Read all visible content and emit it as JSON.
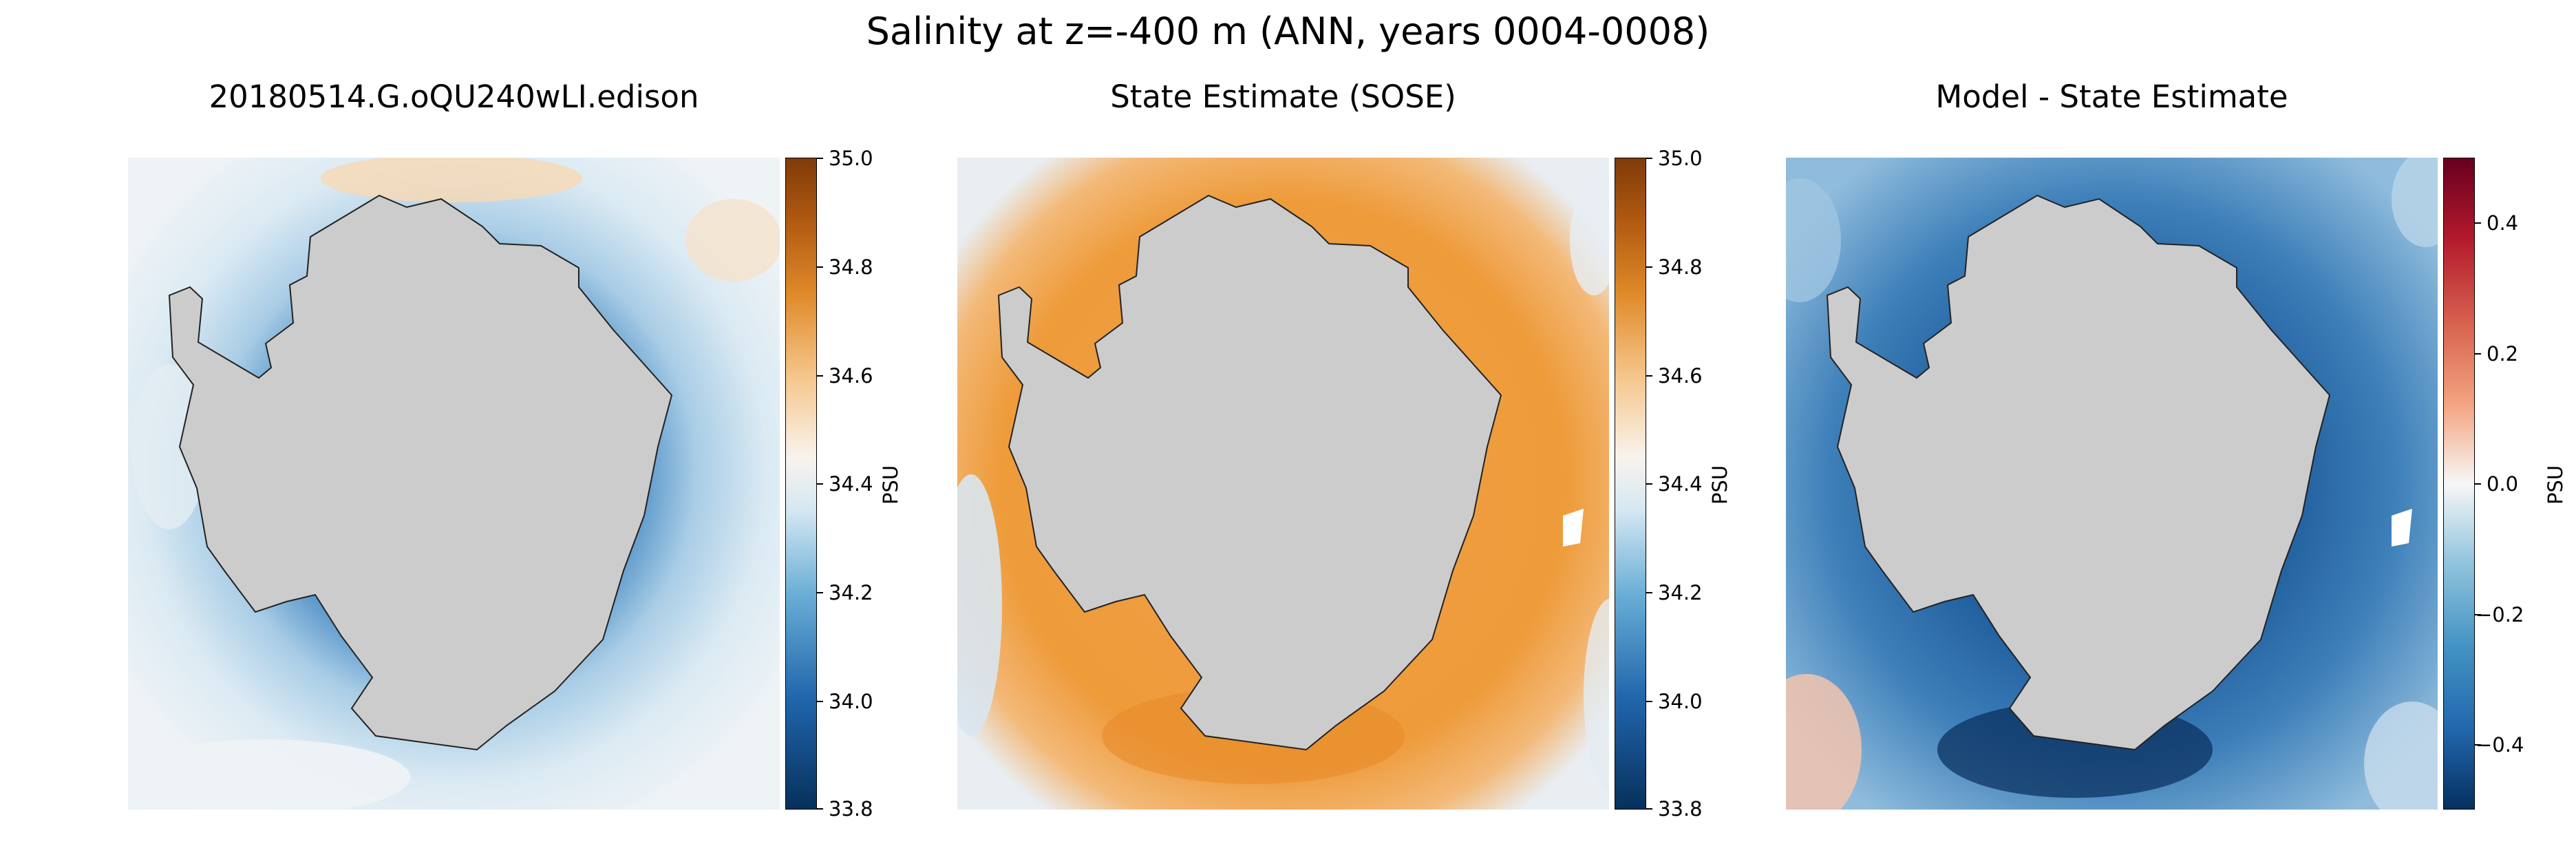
{
  "figure": {
    "suptitle": "Salinity at z=-400 m (ANN, years 0004-0008)"
  },
  "panels": [
    {
      "title": "20180514.G.oQU240wLI.edison",
      "colorbar": {
        "label": "PSU",
        "ticks": [
          "35.0",
          "34.8",
          "34.6",
          "34.4",
          "34.2",
          "34.0",
          "33.8"
        ],
        "range": [
          33.8,
          35.0
        ],
        "colormap": [
          "#07305c",
          "#2166ac",
          "#6aaed6",
          "#d6e8f2",
          "#f8f3ee",
          "#f6c88e",
          "#e08a2a",
          "#b25b12",
          "#7f3b08"
        ]
      }
    },
    {
      "title": "State Estimate (SOSE)",
      "colorbar": {
        "label": "PSU",
        "ticks": [
          "35.0",
          "34.8",
          "34.6",
          "34.4",
          "34.2",
          "34.0",
          "33.8"
        ],
        "range": [
          33.8,
          35.0
        ],
        "colormap": [
          "#07305c",
          "#2166ac",
          "#6aaed6",
          "#d6e8f2",
          "#f8f3ee",
          "#f6c88e",
          "#e08a2a",
          "#b25b12",
          "#7f3b08"
        ]
      }
    },
    {
      "title": "Model - State Estimate",
      "colorbar": {
        "label": "PSU",
        "ticks": [
          "0.4",
          "0.2",
          "0.0",
          "−0.2",
          "−0.4"
        ],
        "range": [
          -0.5,
          0.5
        ],
        "colormap": [
          "#053061",
          "#2166ac",
          "#4393c3",
          "#92c5de",
          "#f7f7f7",
          "#f4a582",
          "#d6604d",
          "#b2182b",
          "#67001f"
        ]
      }
    }
  ],
  "colors": {
    "land": "#cccccc",
    "model_ocean": "#c6dcee",
    "sose_ocean": "#ee9b3a",
    "diff_ocean": "#2f6ca6"
  }
}
